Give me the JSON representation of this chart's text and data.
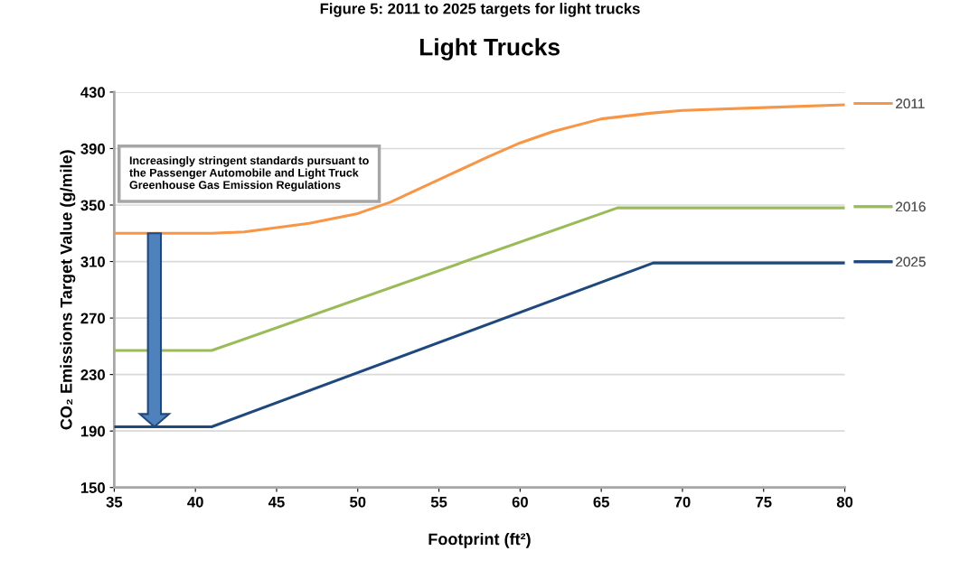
{
  "chart_data": {
    "type": "line",
    "title": "Figure 5: 2011 to 2025 targets for light trucks",
    "subtitle": "Light Trucks",
    "xlabel": "Footprint (ft²)",
    "ylabel": "CO₂ Emissions Target Value (g/mile)",
    "xlim": [
      35,
      80
    ],
    "xticks": [
      35,
      40,
      45,
      50,
      55,
      60,
      65,
      70,
      75,
      80
    ],
    "ylim": [
      150,
      430
    ],
    "yticks": [
      150,
      190,
      230,
      270,
      310,
      350,
      390,
      430
    ],
    "grid": "y",
    "legend": "right",
    "marker": "none",
    "line_style": "solid",
    "series": [
      {
        "name": "2011",
        "color": "#f79646",
        "x": [
          35,
          41,
          43,
          45,
          47,
          50,
          52,
          55,
          58,
          60,
          62,
          65,
          68,
          70,
          75,
          80
        ],
        "values": [
          330,
          330,
          331,
          334,
          337,
          344,
          352,
          368,
          384,
          394,
          402,
          411,
          415,
          417,
          419,
          421
        ]
      },
      {
        "name": "2016",
        "color": "#9bbb59",
        "x": [
          35,
          41,
          66,
          80
        ],
        "values": [
          247,
          247,
          348,
          348
        ]
      },
      {
        "name": "2025",
        "color": "#1f497d",
        "x": [
          35,
          41,
          68.2,
          80
        ],
        "values": [
          193,
          193,
          309,
          309
        ]
      }
    ],
    "annotations": [
      "Increasingly stringent standards pursuant to the Passenger Automobile and Light Truck Greenhouse Gas Emission Regulations"
    ]
  }
}
